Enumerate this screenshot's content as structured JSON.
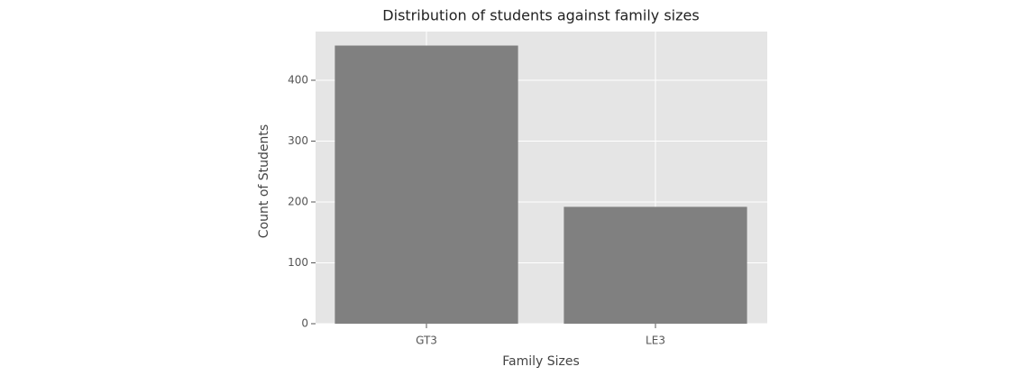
{
  "chart_data": {
    "type": "bar",
    "title": "Distribution of students against family sizes",
    "x_label": "Family Sizes",
    "y_label": "Count of Students",
    "categories": [
      "GT3",
      "LE3"
    ],
    "values": [
      457,
      192
    ],
    "color": "#808080",
    "ylim": [
      0,
      480
    ],
    "yticks": [
      0,
      100,
      200,
      300,
      400
    ],
    "grid": true
  }
}
